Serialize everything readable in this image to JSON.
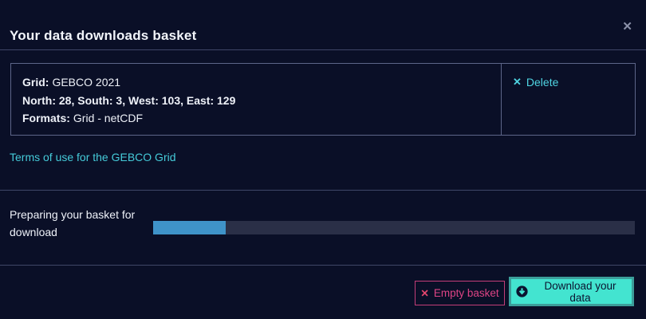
{
  "header": {
    "title": "Your data downloads basket",
    "close_icon": "✕"
  },
  "basket": {
    "item": {
      "grid_label": "Grid:",
      "grid_value": "GEBCO 2021",
      "extent": "North: 28, South: 3, West: 103, East: 129",
      "formats_label": "Formats:",
      "formats_value": "Grid - netCDF",
      "delete_icon": "✕",
      "delete_label": "Delete"
    }
  },
  "links": {
    "terms": "Terms of use for the GEBCO Grid"
  },
  "progress": {
    "label": "Preparing your basket for download",
    "percent": 15
  },
  "footer": {
    "empty_icon": "✕",
    "empty_label": "Empty basket",
    "download_label": "Download your data"
  },
  "colors": {
    "background": "#0a0f27",
    "text": "#eef1f8",
    "divider": "#3f4667",
    "table_border": "#5d6589",
    "link_teal": "#45cbd9",
    "delete_teal": "#4fd4e2",
    "accent_pink": "#dc4384",
    "button_teal_bg": "#43e4d0",
    "button_teal_border": "#3c9e9a",
    "button_dark_text": "#0b1430",
    "progress_fill": "#3f93c9",
    "progress_track": "#2a2f47"
  }
}
